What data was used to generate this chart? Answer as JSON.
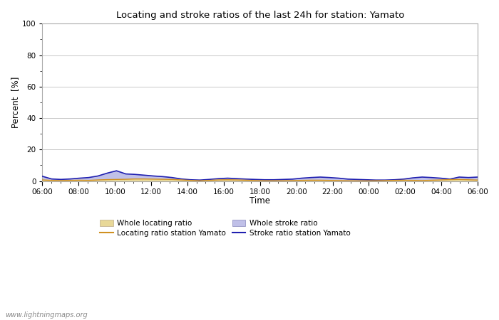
{
  "title": "Locating and stroke ratios of the last 24h for station: Yamato",
  "xlabel": "Time",
  "ylabel": "Percent  [%]",
  "ylim": [
    0,
    100
  ],
  "yticks": [
    0,
    20,
    40,
    60,
    80,
    100
  ],
  "xtick_labels": [
    "06:00",
    "08:00",
    "10:00",
    "12:00",
    "14:00",
    "16:00",
    "18:00",
    "20:00",
    "22:00",
    "00:00",
    "02:00",
    "04:00",
    "06:00"
  ],
  "background_color": "#ffffff",
  "plot_bg_color": "#ffffff",
  "grid_color": "#c8c8c8",
  "watermark": "www.lightningmaps.org",
  "whole_locating_color": "#e8d898",
  "whole_stroke_color": "#c0c0e8",
  "locating_line_color": "#d09020",
  "stroke_line_color": "#2020b0",
  "whole_locating_ratio": [
    0.8,
    0.5,
    0.4,
    0.5,
    0.6,
    0.5,
    0.8,
    1.0,
    1.2,
    1.3,
    1.5,
    1.5,
    1.4,
    1.3,
    1.2,
    0.8,
    0.5,
    0.3,
    0.5,
    0.8,
    0.9,
    0.8,
    0.6,
    0.4,
    0.3,
    0.3,
    0.3,
    0.4,
    0.5,
    0.6,
    0.6,
    0.5,
    0.4,
    0.3,
    0.2,
    0.2,
    0.3,
    0.4,
    0.5,
    0.6,
    0.5,
    0.4,
    0.6,
    0.8,
    1.0,
    1.2,
    0.9,
    0.7
  ],
  "whole_stroke_ratio": [
    3.2,
    1.5,
    1.2,
    1.5,
    2.0,
    2.5,
    3.5,
    5.5,
    7.0,
    5.0,
    4.5,
    4.0,
    3.5,
    3.2,
    2.5,
    1.5,
    1.0,
    0.8,
    1.2,
    1.8,
    2.0,
    1.8,
    1.5,
    1.2,
    1.0,
    1.0,
    1.2,
    1.5,
    2.0,
    2.5,
    2.8,
    2.5,
    2.0,
    1.5,
    1.2,
    1.0,
    0.8,
    0.8,
    1.0,
    1.5,
    2.2,
    2.8,
    2.5,
    2.0,
    1.5,
    2.8,
    2.5,
    2.8
  ],
  "locating_station": [
    0.7,
    0.4,
    0.3,
    0.4,
    0.5,
    0.4,
    0.7,
    0.9,
    1.0,
    1.1,
    1.3,
    1.3,
    1.2,
    1.1,
    1.0,
    0.7,
    0.4,
    0.2,
    0.4,
    0.7,
    0.8,
    0.7,
    0.5,
    0.3,
    0.2,
    0.2,
    0.2,
    0.3,
    0.4,
    0.5,
    0.5,
    0.4,
    0.3,
    0.2,
    0.1,
    0.1,
    0.2,
    0.3,
    0.4,
    0.5,
    0.4,
    0.3,
    0.5,
    0.7,
    0.9,
    1.0,
    0.8,
    0.6
  ],
  "stroke_station": [
    3.0,
    1.3,
    1.0,
    1.3,
    1.8,
    2.2,
    3.2,
    5.0,
    6.5,
    4.5,
    4.2,
    3.7,
    3.2,
    2.8,
    2.2,
    1.3,
    0.8,
    0.6,
    1.0,
    1.5,
    1.8,
    1.5,
    1.2,
    1.0,
    0.8,
    0.8,
    1.0,
    1.2,
    1.8,
    2.2,
    2.5,
    2.2,
    1.8,
    1.2,
    1.0,
    0.8,
    0.6,
    0.6,
    0.8,
    1.2,
    2.0,
    2.5,
    2.2,
    1.8,
    1.2,
    2.5,
    2.2,
    2.5
  ]
}
